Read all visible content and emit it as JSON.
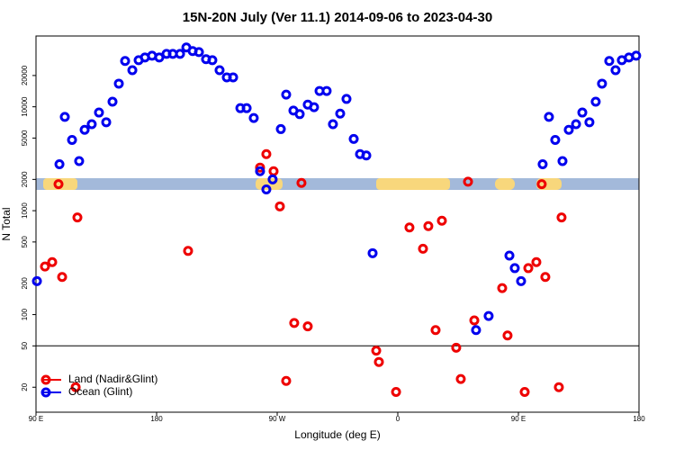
{
  "chart_data": {
    "type": "scatter",
    "title": "15N-20N July (Ver 11.1)   2014-09-06 to 2023-04-30",
    "x_label": "Longitude (deg E)",
    "y_label": "N Total",
    "log_y": true,
    "legend": "bottom-left",
    "xlim": [
      90,
      540
    ],
    "xticks": [
      {
        "value": 90,
        "label": "90 E"
      },
      {
        "value": 180,
        "label": "180"
      },
      {
        "value": 270,
        "label": "90 W"
      },
      {
        "value": 360,
        "label": "0"
      },
      {
        "value": 450,
        "label": "90 E"
      },
      {
        "value": 540,
        "label": "180"
      }
    ],
    "ylim": [
      11.5,
      48000
    ],
    "yticks": [
      20,
      50,
      100,
      200,
      500,
      1000,
      2000,
      5000,
      10000,
      20000
    ],
    "hline": 50,
    "series": [
      {
        "name": "Land (Nadir&Glint)",
        "color": "#ee0000",
        "x": [
          96.7,
          102.1,
          106.8,
          109.5,
          120.9,
          119.6,
          203.5,
          257.2,
          261.9,
          267.3,
          272.0,
          276.7,
          282.7,
          288.1,
          292.8,
          343.9,
          345.9,
          358.7,
          368.7,
          378.8,
          382.8,
          388.2,
          392.9,
          403.6,
          407.0,
          412.4,
          417.1,
          437.9,
          441.9,
          454.7,
          457.4,
          463.4,
          467.4,
          470.1,
          480.2,
          482.2
        ],
        "values": [
          290,
          320,
          1800,
          230,
          860,
          20,
          410,
          2600,
          3500,
          2400,
          1100,
          23,
          83,
          1850,
          77,
          45,
          35,
          18,
          690,
          430,
          710,
          71,
          800,
          48,
          24,
          1900,
          88,
          180,
          63,
          18,
          280,
          320,
          1800,
          230,
          20,
          860
        ]
      },
      {
        "name": "Ocean (Glint)",
        "color": "#0000ee",
        "x": [
          90.7,
          107.5,
          111.5,
          116.9,
          122.2,
          126.3,
          131.6,
          137.0,
          142.4,
          147.1,
          151.8,
          156.5,
          161.9,
          166.6,
          171.3,
          176.6,
          182.0,
          187.4,
          192.1,
          197.5,
          202.2,
          206.9,
          211.6,
          216.9,
          221.6,
          227.0,
          232.4,
          237.1,
          242.5,
          247.2,
          252.5,
          257.2,
          261.9,
          266.6,
          272.7,
          276.7,
          282.1,
          286.8,
          292.8,
          297.5,
          301.6,
          306.9,
          311.6,
          317.0,
          321.7,
          327.1,
          331.8,
          336.5,
          341.2,
          418.4,
          427.8,
          443.3,
          447.3,
          452.0,
          468.1,
          472.8,
          477.5,
          482.9,
          487.6,
          493.0,
          497.7,
          503.0,
          507.7,
          512.4,
          517.8,
          522.5,
          527.2,
          532.5,
          537.9
        ],
        "values": [
          210,
          2800,
          8000,
          4800,
          3000,
          6000,
          6800,
          8800,
          7100,
          11200,
          16700,
          27600,
          22500,
          28100,
          29800,
          31000,
          29800,
          32300,
          32300,
          32300,
          37200,
          34400,
          33600,
          28700,
          28100,
          22500,
          19200,
          19200,
          9700,
          9700,
          7800,
          2400,
          1600,
          2000,
          6100,
          13100,
          9200,
          8500,
          10500,
          9900,
          14200,
          14200,
          6800,
          8600,
          11900,
          4900,
          3500,
          3400,
          390,
          71,
          97,
          370,
          280,
          210,
          2800,
          8000,
          4800,
          3000,
          6000,
          6800,
          8800,
          7100,
          11200,
          16700,
          27600,
          22500,
          28100,
          29800,
          31000
        ]
      }
    ]
  }
}
